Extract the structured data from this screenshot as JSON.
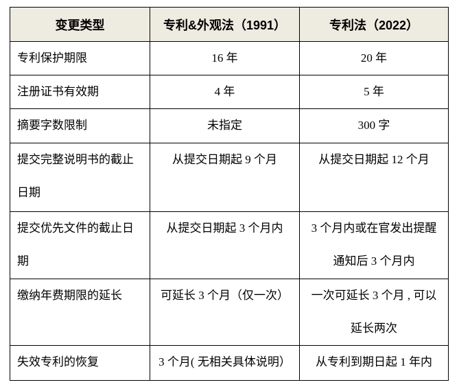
{
  "chart_data": {
    "type": "table",
    "title": "",
    "columns": [
      "变更类型",
      "专利&外观法（1991）",
      "专利法（2022）"
    ],
    "rows": [
      [
        "专利保护期限",
        "16 年",
        "20 年"
      ],
      [
        "注册证书有效期",
        "4 年",
        "5 年"
      ],
      [
        "摘要字数限制",
        "未指定",
        "300 字"
      ],
      [
        "提交完整说明书的截止\n日期",
        "从提交日期起 9 个月",
        "从提交日期起 12 个月"
      ],
      [
        "提交优先文件的截止日\n期",
        "从提交日期起 3 个月内",
        "3 个月内或在官发出提醒\n通知后 3 个月内"
      ],
      [
        "缴纳年费期限的延长",
        "可延长 3 个月（仅一次）",
        "一次可延长 3 个月 , 可以\n延长两次"
      ],
      [
        "失效专利的恢复",
        "3 个月( 无相关具体说明）",
        "从专利到期日起 1 年内"
      ]
    ],
    "layout": {
      "header_background": "#eeebe1",
      "border_color": "#000000",
      "page_background": "#ffffff",
      "text_color": "#000000",
      "header_bold": true,
      "label_column_align": "left",
      "value_columns_align": "center"
    }
  }
}
